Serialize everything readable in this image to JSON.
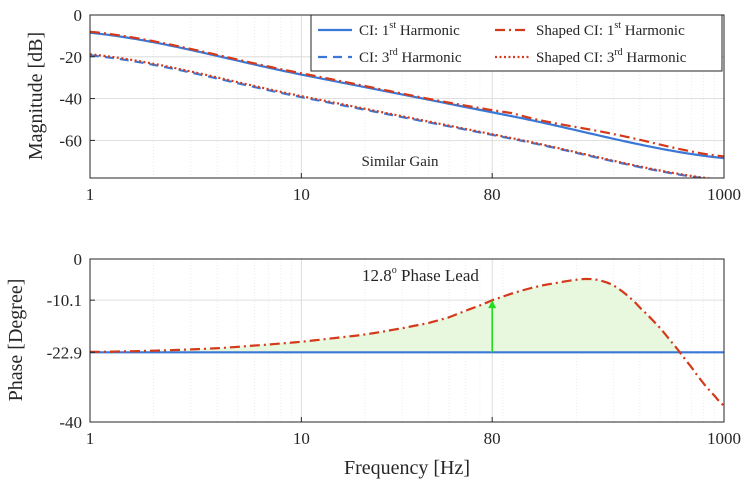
{
  "chart_data": [
    {
      "type": "line",
      "xscale": "log",
      "ylabel": "Magnitude [dB]",
      "xlim": [
        1,
        1000
      ],
      "ylim": [
        -78,
        0
      ],
      "xticks": [
        1,
        10,
        80,
        1000
      ],
      "xtick_labels": [
        "1",
        "10",
        "80",
        "1000"
      ],
      "yticks": [
        0,
        -20,
        -40,
        -60
      ],
      "ytick_labels": [
        "0",
        "-20",
        "-40",
        "-60"
      ],
      "grid": true,
      "legend_position": "top-right",
      "legend": [
        {
          "text": "CI: 1",
          "sup": "st",
          "suffix": " Harmonic"
        },
        {
          "text": "CI: 3",
          "sup": "rd",
          "suffix": " Harmonic"
        },
        {
          "text": "Shaped CI: 1",
          "sup": "st",
          "suffix": " Harmonic"
        },
        {
          "text": "Shaped CI: 3",
          "sup": "rd",
          "suffix": " Harmonic"
        }
      ],
      "annotation": "Similar Gain",
      "series": [
        {
          "name": "CI: 1st Harmonic",
          "color": "#3a78d8",
          "style": "solid",
          "x": [
            1,
            10,
            100,
            1000
          ],
          "y": [
            -8.5,
            -28.5,
            -48.5,
            -68.5
          ]
        },
        {
          "name": "CI: 3rd Harmonic",
          "color": "#3a78d8",
          "style": "dash",
          "x": [
            1,
            10,
            100,
            1000
          ],
          "y": [
            -19.3,
            -39.3,
            -59.3,
            -79.3
          ]
        },
        {
          "name": "Shaped CI: 1st Harmonic",
          "color": "#d33a1a",
          "style": "dashdot",
          "x": [
            1,
            10,
            100,
            300,
            1000
          ],
          "y": [
            -8.0,
            -27.9,
            -47.0,
            -57.0,
            -67.7
          ]
        },
        {
          "name": "Shaped CI: 3rd Harmonic",
          "color": "#d33a1a",
          "style": "dot",
          "x": [
            1,
            10,
            100,
            1000
          ],
          "y": [
            -18.8,
            -38.8,
            -59.0,
            -79.0
          ]
        }
      ]
    },
    {
      "type": "line",
      "xscale": "log",
      "xlabel": "Frequency [Hz]",
      "ylabel": "Phase [Degree]",
      "xlim": [
        1,
        1000
      ],
      "ylim": [
        -40,
        0
      ],
      "xticks": [
        1,
        10,
        80,
        1000
      ],
      "xtick_labels": [
        "1",
        "10",
        "80",
        "1000"
      ],
      "yticks": [
        0,
        -10.1,
        -22.9,
        -40
      ],
      "ytick_labels": [
        "0",
        "-10.1",
        "-22.9",
        "-40"
      ],
      "grid": true,
      "annotation_text": "12.8",
      "annotation_sup": "o",
      "annotation_suffix": " Phase Lead",
      "arrow": {
        "x": 80,
        "from": -22.9,
        "to": -10.1,
        "color": "#22dd22"
      },
      "fill_color": "#e8f8df",
      "series": [
        {
          "name": "CI: 1st Harmonic",
          "color": "#3a78d8",
          "style": "solid",
          "x": [
            1,
            1000
          ],
          "y": [
            -22.9,
            -22.9
          ]
        },
        {
          "name": "Shaped CI: 1st Harmonic",
          "color": "#d33a1a",
          "style": "dashdot",
          "x": [
            1,
            2,
            4,
            7,
            10,
            15,
            20,
            30,
            40,
            50,
            60,
            70,
            80,
            100,
            130,
            160,
            200,
            230,
            260,
            300,
            350,
            400,
            500,
            600,
            700,
            800,
            900,
            1000
          ],
          "y": [
            -22.8,
            -22.5,
            -21.9,
            -21.0,
            -20.3,
            -19.3,
            -18.5,
            -17.0,
            -15.7,
            -14.3,
            -12.7,
            -11.4,
            -10.1,
            -8.4,
            -6.8,
            -5.9,
            -5.1,
            -4.9,
            -5.3,
            -6.5,
            -9.0,
            -12.0,
            -17.0,
            -22.0,
            -26.5,
            -30.5,
            -33.5,
            -36.0
          ]
        }
      ]
    }
  ]
}
